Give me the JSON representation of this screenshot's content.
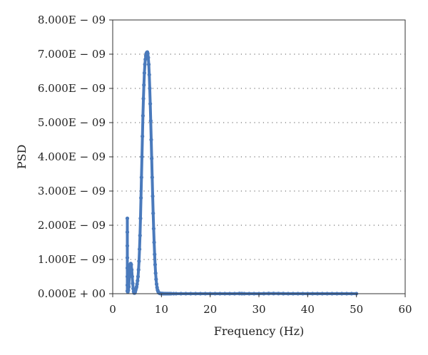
{
  "chart_data": {
    "type": "scatter",
    "title": "",
    "xlabel": "Frequency (Hz)",
    "ylabel": "PSD",
    "xlim": [
      0,
      60
    ],
    "ylim": [
      0,
      8e-09
    ],
    "x_ticks": [
      0,
      10,
      20,
      30,
      40,
      50,
      60
    ],
    "x_tick_labels": [
      "0",
      "10",
      "20",
      "30",
      "40",
      "50",
      "60"
    ],
    "y_ticks": [
      0,
      1e-09,
      2e-09,
      3e-09,
      4e-09,
      5e-09,
      6e-09,
      7e-09,
      8e-09
    ],
    "y_tick_labels": [
      "0.000E + 00",
      "1.000E − 09",
      "2.000E − 09",
      "3.000E − 09",
      "4.000E − 09",
      "5.000E − 09",
      "6.000E − 09",
      "7.000E − 09",
      "8.000E − 09"
    ],
    "grid": "horizontal dotted",
    "legend": "none",
    "series_color": "#4a7abc",
    "series": [
      {
        "x": [
          3.0,
          3.0,
          3.0,
          3.0,
          3.0,
          3.0,
          3.0,
          3.0,
          3.1,
          3.2,
          3.3,
          3.4,
          3.5,
          3.6,
          3.7,
          3.8,
          3.9,
          4.0,
          4.1,
          4.2,
          4.3,
          4.4,
          4.5,
          4.6,
          4.7,
          4.8,
          4.9,
          5.0,
          5.1,
          5.2,
          5.3,
          5.4,
          5.5,
          5.6,
          5.7,
          5.8,
          5.9,
          6.0,
          6.1,
          6.2,
          6.3,
          6.4,
          6.5,
          6.6,
          6.7,
          6.8,
          6.9,
          7.0,
          7.1,
          7.2,
          7.3,
          7.4,
          7.5,
          7.6,
          7.7,
          7.8,
          7.9,
          8.0,
          8.1,
          8.2,
          8.3,
          8.4,
          8.5,
          8.6,
          8.7,
          8.8,
          8.9,
          9.0,
          9.1,
          9.2,
          9.3,
          9.4,
          9.5,
          9.6,
          9.7,
          9.8,
          9.9,
          10.0,
          10.1,
          10.2,
          10.3,
          10.4,
          10.5,
          10.6,
          10.7,
          10.8,
          10.9,
          11.0,
          11.2,
          11.4,
          11.6,
          11.8,
          12.0,
          12.5,
          13.0,
          14.0,
          15.0,
          16.0,
          17.0,
          18.0,
          19.0,
          20.0,
          21.0,
          22.0,
          23.0,
          24.0,
          25.0,
          26.0,
          26.5,
          27.0,
          28.0,
          29.0,
          30.0,
          31.0,
          32.0,
          33.0,
          34.0,
          35.0,
          36.0,
          37.0,
          38.0,
          39.0,
          40.0,
          41.0,
          42.0,
          43.0,
          44.0,
          45.0,
          46.0,
          47.0,
          48.0,
          49.0,
          50.0
        ],
        "y": [
          2.2e-09,
          1.8e-09,
          1.4e-09,
          1.05e-09,
          7.5e-10,
          5e-10,
          2.5e-10,
          8e-11,
          5e-11,
          1e-10,
          2e-10,
          5e-10,
          7.5e-10,
          8.5e-10,
          8.8e-10,
          8.5e-10,
          7e-10,
          5e-10,
          3e-10,
          1.5e-10,
          6e-11,
          2e-11,
          2e-11,
          5e-11,
          1e-10,
          1.5e-10,
          2e-10,
          2.8e-10,
          3.8e-10,
          5e-10,
          7e-10,
          9.5e-10,
          1.3e-09,
          1.7e-09,
          2.2e-09,
          2.8e-09,
          3.4e-09,
          4e-09,
          4.6e-09,
          5.2e-09,
          5.7e-09,
          6.1e-09,
          6.45e-09,
          6.7e-09,
          6.85e-09,
          6.95e-09,
          7.02e-09,
          7.05e-09,
          7.06e-09,
          7.02e-09,
          6.9e-09,
          6.7e-09,
          6.4e-09,
          6e-09,
          5.55e-09,
          5.05e-09,
          4.5e-09,
          3.95e-09,
          3.4e-09,
          2.85e-09,
          2.35e-09,
          1.9e-09,
          1.5e-09,
          1.15e-09,
          8.5e-10,
          6e-10,
          4.2e-10,
          2.8e-10,
          1.8e-10,
          1.1e-10,
          7e-11,
          4e-11,
          2.5e-11,
          1.5e-11,
          1e-11,
          8e-12,
          5e-12,
          4e-12,
          3e-12,
          2e-12,
          2e-12,
          1e-12,
          1e-12,
          1e-12,
          1e-12,
          1e-12,
          1e-12,
          1e-12,
          1e-12,
          1e-12,
          1e-12,
          1e-12,
          1e-12,
          1e-12,
          1e-12,
          1e-12,
          1e-12,
          1e-12,
          1e-12,
          1e-12,
          1e-12,
          1e-12,
          1e-12,
          1e-12,
          1e-12,
          1e-12,
          1e-12,
          5e-12,
          3e-12,
          1e-12,
          1e-12,
          1e-12,
          1e-12,
          2e-12,
          5e-12,
          5e-12,
          4e-12,
          3e-12,
          1e-12,
          1e-12,
          1e-12,
          1e-12,
          1e-12,
          1e-12,
          1e-12,
          1e-12,
          1e-12,
          1e-12,
          1e-12,
          1e-12,
          1e-12,
          1e-12,
          1e-12
        ]
      }
    ]
  }
}
